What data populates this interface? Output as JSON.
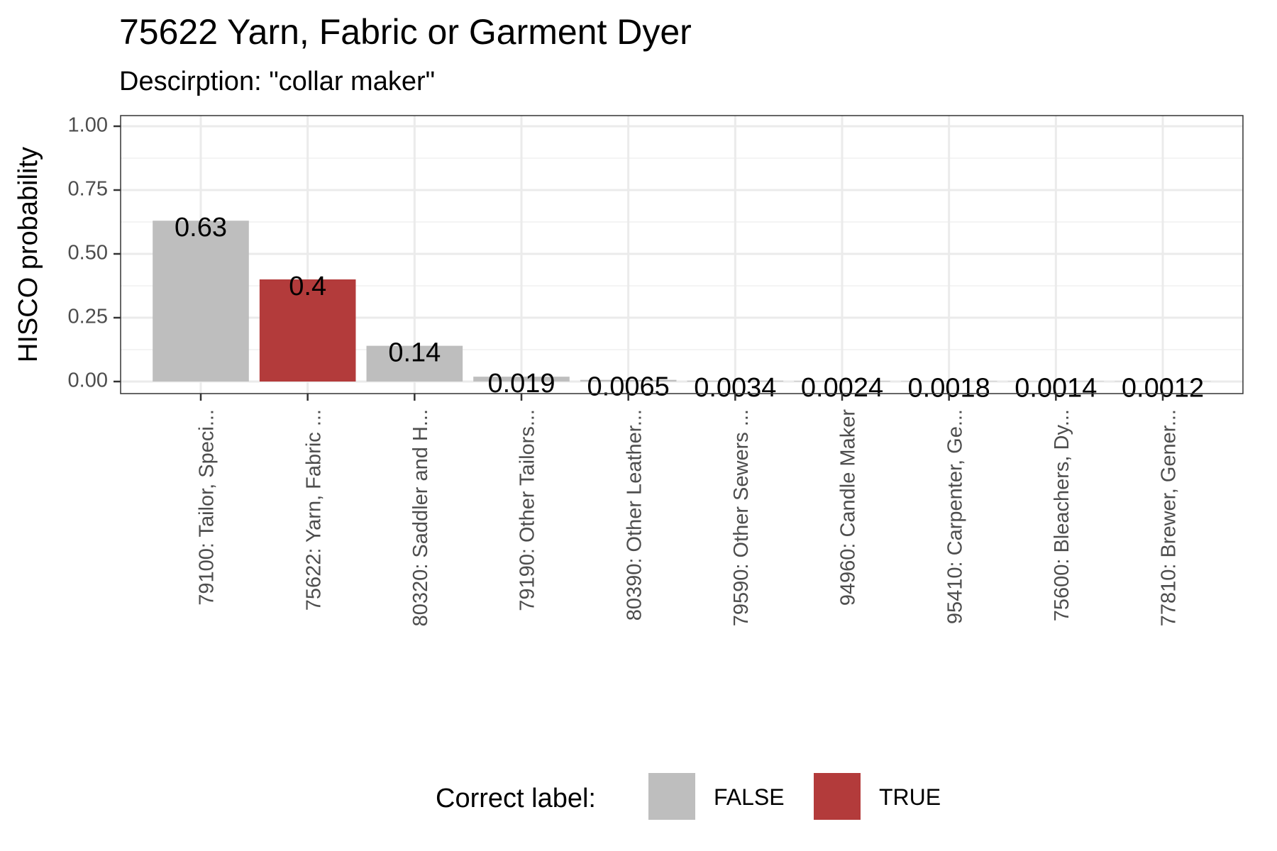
{
  "chart_data": {
    "type": "bar",
    "title": "75622 Yarn, Fabric or Garment Dyer",
    "subtitle": "Descirption: \"collar maker\"",
    "ylabel": "HISCO probability",
    "xlabel": "",
    "ylim": [
      0,
      1
    ],
    "yticks": [
      0,
      0.25,
      0.5,
      0.75,
      1
    ],
    "ytick_labels": [
      "0.00",
      "0.25",
      "0.50",
      "0.75",
      "1.00"
    ],
    "grid": true,
    "categories": [
      "79100: Tailor, Speci...",
      "75622: Yarn, Fabric ...",
      "80320: Saddler and H...",
      "79190: Other Tailors...",
      "80390: Other Leather...",
      "79590: Other Sewers ...",
      "94960: Candle Maker",
      "95410: Carpenter, Ge...",
      "75600: Bleachers, Dy...",
      "77810: Brewer, Gener..."
    ],
    "values": [
      0.63,
      0.4,
      0.14,
      0.019,
      0.0065,
      0.0034,
      0.0024,
      0.0018,
      0.0014,
      0.0012
    ],
    "value_labels": [
      "0.63",
      "0.4",
      "0.14",
      "0.019",
      "0.0065",
      "0.0034",
      "0.0024",
      "0.0018",
      "0.0014",
      "0.0012"
    ],
    "correct": [
      false,
      true,
      false,
      false,
      false,
      false,
      false,
      false,
      false,
      false
    ],
    "legend": {
      "title": "Correct label:",
      "placement": "bottom",
      "entries": [
        {
          "label": "FALSE",
          "color": "#bebebe"
        },
        {
          "label": "TRUE",
          "color": "#b33b3b"
        }
      ]
    }
  }
}
